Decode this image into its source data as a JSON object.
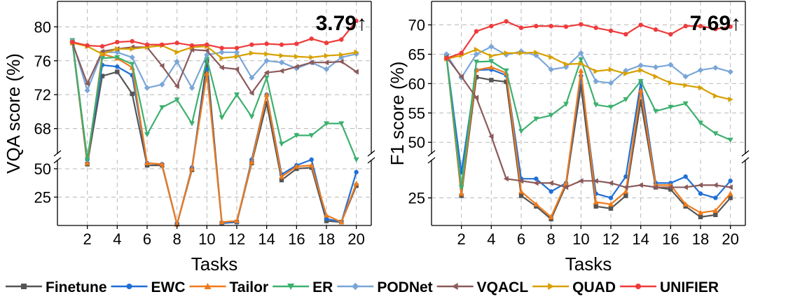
{
  "legend": [
    {
      "name": "Finetune",
      "color": "#555555",
      "marker": "square"
    },
    {
      "name": "EWC",
      "color": "#1f6fd6",
      "marker": "circle"
    },
    {
      "name": "Tailor",
      "color": "#f07a1a",
      "marker": "triangle-up"
    },
    {
      "name": "ER",
      "color": "#3cb06e",
      "marker": "triangle-down"
    },
    {
      "name": "PODNet",
      "color": "#7aa6d8",
      "marker": "diamond"
    },
    {
      "name": "VQACL",
      "color": "#8b5a5a",
      "marker": "triangle-left"
    },
    {
      "name": "QUAD",
      "color": "#d7a000",
      "marker": "triangle-right"
    },
    {
      "name": "UNIFIER",
      "color": "#ef3b3b",
      "marker": "circle"
    }
  ],
  "chart_data": [
    {
      "type": "line",
      "xlabel": "Tasks",
      "ylabel": "VQA score (%)",
      "x": [
        1,
        2,
        3,
        4,
        5,
        6,
        7,
        8,
        9,
        10,
        11,
        12,
        13,
        14,
        15,
        16,
        17,
        18,
        19,
        20
      ],
      "x_ticks": [
        "2",
        "4",
        "6",
        "8",
        "10",
        "12",
        "14",
        "16",
        "18",
        "20"
      ],
      "y_ticks_upper": [
        "68",
        "72",
        "76",
        "80"
      ],
      "y_ticks_lower": [
        "25",
        "50"
      ],
      "broken_axis": true,
      "ylim_upper": [
        65,
        83
      ],
      "ylim_lower": [
        0,
        58
      ],
      "grid": true,
      "annotation": "3.79↑",
      "series": [
        {
          "name": "Finetune",
          "values": [
            78.2,
            54,
            74.2,
            74.7,
            72.1,
            53,
            53,
            1,
            49,
            76,
            2,
            3,
            55,
            71,
            40,
            50,
            51,
            4,
            3,
            35
          ]
        },
        {
          "name": "EWC",
          "values": [
            78.3,
            58,
            75.5,
            75.3,
            74.3,
            55,
            54,
            1,
            51,
            75,
            2,
            3,
            58,
            72,
            45,
            53,
            60,
            6,
            3,
            47
          ]
        },
        {
          "name": "Tailor",
          "values": [
            78.4,
            55,
            76.8,
            76.3,
            75.2,
            55,
            54,
            1,
            50,
            74.5,
            3,
            4,
            56,
            72,
            43,
            52,
            53,
            9,
            3,
            37
          ]
        },
        {
          "name": "ER",
          "values": [
            78.4,
            62,
            76.3,
            76.4,
            75.6,
            67.3,
            70.5,
            71.4,
            68.6,
            76.2,
            69.3,
            72,
            69.4,
            74,
            66.2,
            67.2,
            67.2,
            68.6,
            68.6,
            63.9
          ]
        },
        {
          "name": "PODNet",
          "values": [
            78.3,
            72.5,
            77,
            77,
            76.4,
            72.8,
            73.2,
            75.9,
            72.8,
            76.7,
            77,
            77,
            74,
            76,
            75.8,
            75.1,
            75.8,
            75,
            76.4,
            76.8
          ]
        },
        {
          "name": "VQACL",
          "values": [
            78.1,
            73.3,
            77.1,
            77.4,
            77.6,
            77.6,
            75.4,
            73,
            77.3,
            77.2,
            75.2,
            75,
            72.2,
            74.6,
            74.8,
            75.3,
            75.8,
            75.8,
            75.9,
            74.7
          ]
        },
        {
          "name": "QUAD",
          "values": [
            78.1,
            77.7,
            76.8,
            77.4,
            77.4,
            77.6,
            77.8,
            77,
            77.6,
            77.7,
            76.3,
            76.5,
            76.9,
            76.8,
            76.6,
            76.5,
            76.4,
            76.6,
            76.7,
            77
          ]
        },
        {
          "name": "UNIFIER",
          "values": [
            78.2,
            77.8,
            77.7,
            78.2,
            78.3,
            77.9,
            77.9,
            78.1,
            77.8,
            77.9,
            77.5,
            77.5,
            77.9,
            78,
            77.9,
            78,
            78.6,
            78.1,
            78.5,
            80.7
          ]
        }
      ]
    },
    {
      "type": "line",
      "xlabel": "Tasks",
      "ylabel": "F1 score (%)",
      "x": [
        1,
        2,
        3,
        4,
        5,
        6,
        7,
        8,
        9,
        10,
        11,
        12,
        13,
        14,
        15,
        16,
        17,
        18,
        19,
        20
      ],
      "x_ticks": [
        "2",
        "4",
        "6",
        "8",
        "10",
        "12",
        "14",
        "16",
        "18",
        "20"
      ],
      "y_ticks_upper": [
        "50",
        "55",
        "60",
        "65",
        "70"
      ],
      "y_ticks_lower": [
        "25"
      ],
      "broken_axis": true,
      "ylim_upper": [
        48,
        74
      ],
      "ylim_lower": [
        12,
        43
      ],
      "grid": true,
      "annotation": "7.69↑",
      "series": [
        {
          "name": "Finetune",
          "values": [
            64.8,
            26,
            61.1,
            60.6,
            60.3,
            26,
            21,
            15,
            31,
            59.6,
            21,
            20,
            26,
            57,
            30,
            29,
            21,
            16,
            17,
            25
          ]
        },
        {
          "name": "EWC",
          "values": [
            64.5,
            37,
            62.3,
            62.4,
            61.4,
            34,
            34,
            28,
            32,
            61.3,
            27,
            25,
            35,
            60.2,
            32,
            32,
            35,
            27,
            25,
            33
          ]
        },
        {
          "name": "Tailor",
          "values": [
            64.6,
            27,
            62.3,
            62.8,
            61.8,
            28,
            22,
            16,
            32,
            62.2,
            23,
            22,
            28,
            58.8,
            31,
            31,
            22,
            18,
            19,
            27
          ]
        },
        {
          "name": "ER",
          "values": [
            64.6,
            30,
            63.7,
            63.8,
            62.2,
            51.9,
            54,
            54.6,
            56.5,
            64.1,
            56.4,
            56,
            57.3,
            60.4,
            55.3,
            56,
            56.6,
            53.3,
            51.5,
            50.4
          ]
        },
        {
          "name": "PODNet",
          "values": [
            65,
            61,
            65,
            66.3,
            64.9,
            65.5,
            64.8,
            62.4,
            62.8,
            65.2,
            60.4,
            60.1,
            62.2,
            63.1,
            62.8,
            63.2,
            61.2,
            62.3,
            62.7,
            62
          ]
        },
        {
          "name": "VQACL",
          "values": [
            64.5,
            61.2,
            57.6,
            51,
            34,
            33,
            32,
            32,
            30,
            33,
            33,
            32,
            30,
            31,
            30,
            30,
            30,
            31,
            31,
            30
          ]
        },
        {
          "name": "QUAD",
          "values": [
            64.2,
            64.8,
            65.8,
            64.7,
            65.2,
            65.2,
            65.3,
            64.5,
            63.3,
            63.4,
            62.1,
            62.4,
            61.7,
            62.3,
            61.2,
            60.1,
            59.7,
            59.3,
            57.9,
            57.3
          ]
        },
        {
          "name": "UNIFIER",
          "values": [
            64.3,
            65.2,
            68.9,
            69.8,
            70.6,
            69.5,
            69.8,
            69.8,
            69.7,
            70.1,
            69.5,
            69,
            68.4,
            70,
            69.2,
            68.4,
            69.8,
            69.8,
            69.3,
            69.7
          ]
        }
      ]
    }
  ]
}
